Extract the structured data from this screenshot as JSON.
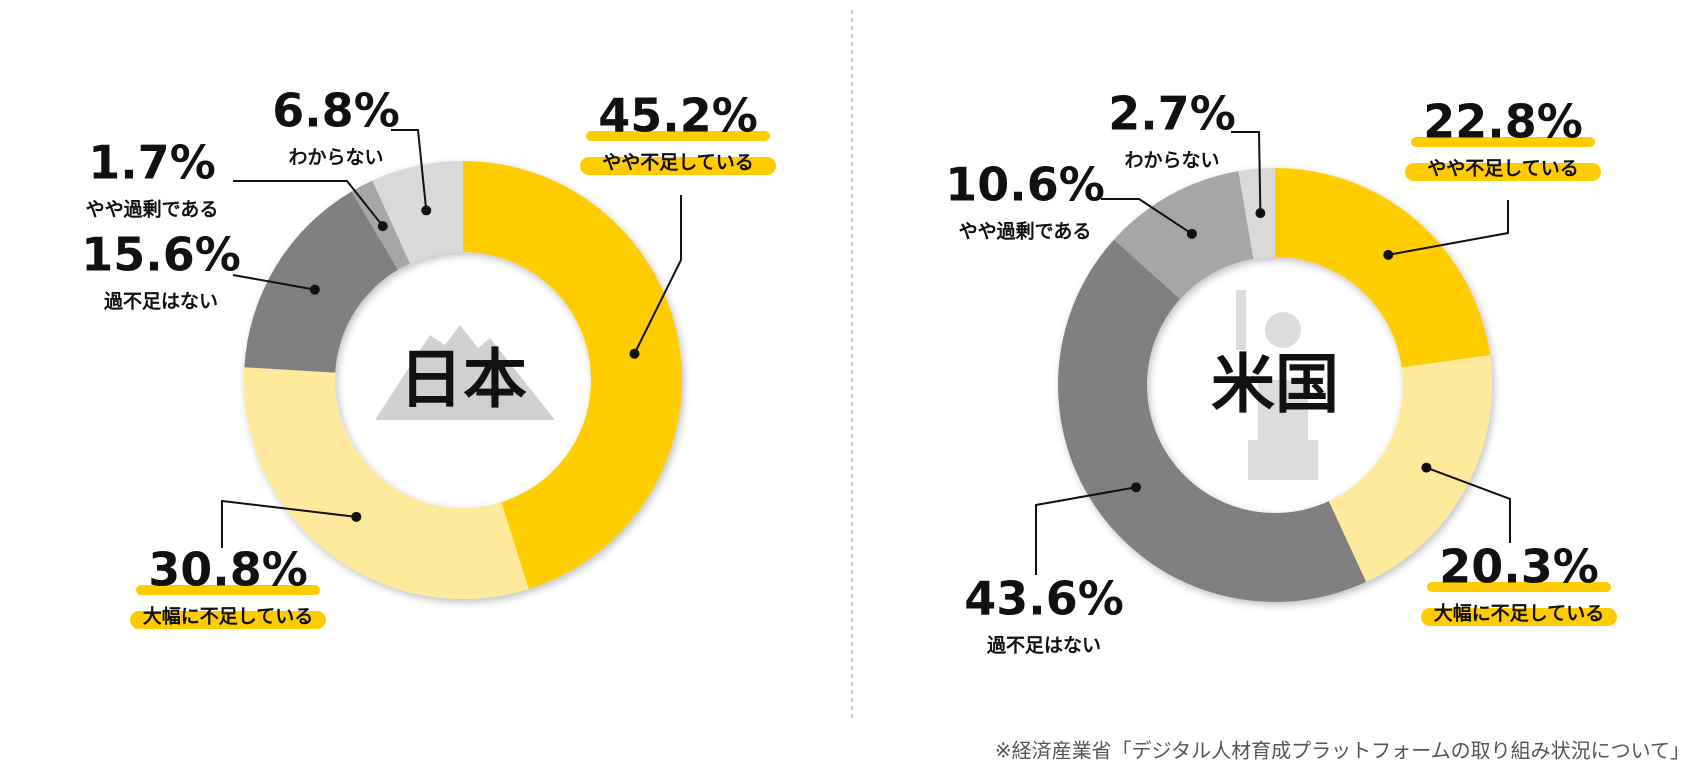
{
  "chart_data": [
    {
      "type": "pie",
      "center_label": "日本",
      "categories": [
        "やや不足している",
        "大幅に不足している",
        "過不足はない",
        "やや過剰である",
        "わからない"
      ],
      "values": [
        45.2,
        30.8,
        15.6,
        1.7,
        6.8
      ],
      "value_labels": [
        "45.2%",
        "30.8%",
        "15.6%",
        "1.7%",
        "6.8%"
      ],
      "colors": [
        "#FFCC00",
        "#FFE99A",
        "#808080",
        "#A6A6A6",
        "#D9D9D9"
      ]
    },
    {
      "type": "pie",
      "center_label": "米国",
      "categories": [
        "やや不足している",
        "大幅に不足している",
        "過不足はない",
        "やや過剰である",
        "わからない"
      ],
      "values": [
        22.8,
        20.3,
        43.6,
        10.6,
        2.7
      ],
      "value_labels": [
        "22.8%",
        "20.3%",
        "43.6%",
        "10.6%",
        "2.7%"
      ],
      "colors": [
        "#FFCC00",
        "#FFE99A",
        "#808080",
        "#A6A6A6",
        "#D9D9D9"
      ]
    }
  ],
  "footnote": "※経済産業省「デジタル人材育成プラットフォームの取り組み状況について」"
}
